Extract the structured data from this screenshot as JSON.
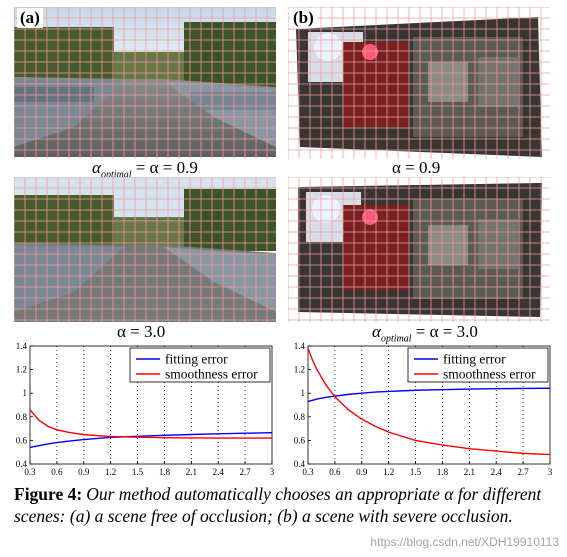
{
  "panels": {
    "a": {
      "tag": "(a)",
      "caption_top": "α_optimal = α = 0.9",
      "caption_bottom": "α = 3.0"
    },
    "b": {
      "tag": "(b)",
      "caption_top": "α = 0.9",
      "caption_bottom": "α_optimal = α = 3.0"
    }
  },
  "captions": {
    "a_top_sub": "optimal",
    "a_top_rest": " = α = 0.9",
    "a_bottom": "α = 3.0",
    "b_top": "α = 0.9",
    "b_bottom_sub": "optimal",
    "b_bottom_rest": " = α = 3.0",
    "alpha": "α"
  },
  "figure_caption": {
    "label": "Figure 4:",
    "text": "Our method automatically chooses an appropriate α for different scenes: (a) a scene free of occlusion; (b) a scene with severe occlusion."
  },
  "watermark": "https://blog.csdn.net/XDH19910113",
  "colors": {
    "fitting": "#0000ff",
    "smoothness": "#ff0000",
    "grid": "#e8a0a0"
  },
  "chart_data": [
    {
      "type": "line",
      "panel": "a",
      "x": [
        0.3,
        0.4,
        0.5,
        0.6,
        0.75,
        0.9,
        1.05,
        1.2,
        1.5,
        1.8,
        2.1,
        2.4,
        2.7,
        3.0
      ],
      "series": [
        {
          "name": "fitting error",
          "color": "#0000ff",
          "values": [
            0.54,
            0.555,
            0.57,
            0.582,
            0.595,
            0.607,
            0.617,
            0.625,
            0.635,
            0.643,
            0.65,
            0.656,
            0.661,
            0.665
          ]
        },
        {
          "name": "smoothness error",
          "color": "#ff0000",
          "values": [
            0.86,
            0.77,
            0.72,
            0.69,
            0.665,
            0.65,
            0.64,
            0.633,
            0.627,
            0.623,
            0.621,
            0.62,
            0.62,
            0.62
          ]
        }
      ],
      "xticks": [
        "0.3",
        "0.6",
        "0.9",
        "1.2",
        "1.5",
        "1.8",
        "2.1",
        "2.4",
        "2.7",
        "3"
      ],
      "yticks": [
        "0.4",
        "0.6",
        "0.8",
        "1",
        "1.2",
        "1.4"
      ],
      "xlim": [
        0.3,
        3.0
      ],
      "ylim": [
        0.4,
        1.4
      ],
      "legend": "top-right",
      "grid": "vertical-dotted"
    },
    {
      "type": "line",
      "panel": "b",
      "x": [
        0.3,
        0.35,
        0.4,
        0.5,
        0.6,
        0.75,
        0.9,
        1.05,
        1.2,
        1.5,
        1.8,
        2.1,
        2.4,
        2.7,
        3.0
      ],
      "series": [
        {
          "name": "fitting error",
          "color": "#0000ff",
          "values": [
            0.93,
            0.94,
            0.95,
            0.965,
            0.975,
            0.99,
            1.0,
            1.01,
            1.015,
            1.025,
            1.03,
            1.035,
            1.038,
            1.04,
            1.042
          ]
        },
        {
          "name": "smoothness error",
          "color": "#ff0000",
          "values": [
            1.38,
            1.28,
            1.2,
            1.07,
            0.97,
            0.86,
            0.78,
            0.72,
            0.67,
            0.6,
            0.56,
            0.53,
            0.51,
            0.49,
            0.48
          ]
        }
      ],
      "xticks": [
        "0.3",
        "0.6",
        "0.9",
        "1.2",
        "1.5",
        "1.8",
        "2.1",
        "2.4",
        "2.7",
        "3"
      ],
      "yticks": [
        "0.4",
        "0.6",
        "0.8",
        "1",
        "1.2",
        "1.4"
      ],
      "xlim": [
        0.3,
        3.0
      ],
      "ylim": [
        0.4,
        1.4
      ],
      "legend": "top-right",
      "grid": "vertical-dotted"
    }
  ]
}
